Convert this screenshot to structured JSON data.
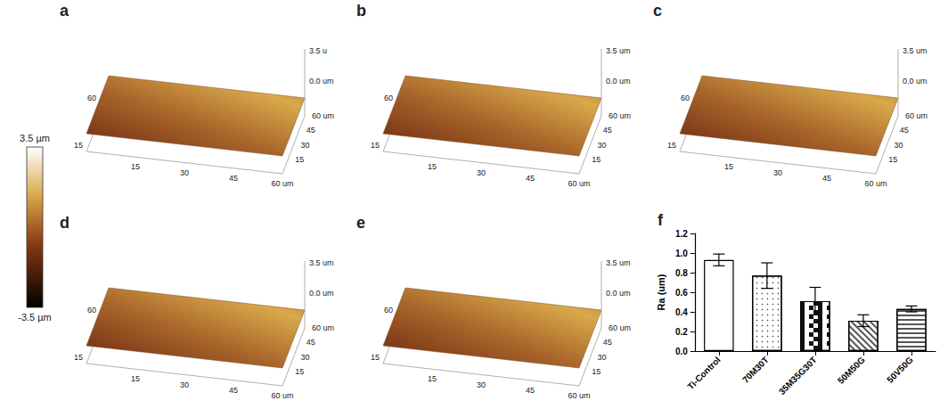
{
  "colorbar": {
    "ticks": [
      {
        "value": 3.5,
        "label": "3.5 µm"
      },
      {
        "value": -3.5,
        "label": "-3.5 µm"
      }
    ]
  },
  "afm_axis_labels": {
    "x": [
      "15",
      "30",
      "45",
      "60 um"
    ],
    "y": [
      "15",
      "30",
      "45",
      "60 um"
    ],
    "left": [
      "60",
      "15"
    ]
  },
  "afm_panels": [
    {
      "label": "a",
      "z_labels": [
        "3.5 u",
        "0.0 um"
      ]
    },
    {
      "label": "b",
      "z_labels": [
        "3.5 um",
        "0.0 um"
      ]
    },
    {
      "label": "c",
      "z_labels": [
        "3.5 um",
        "0.0 um"
      ]
    },
    {
      "label": "d",
      "z_labels": [
        "3.5 um",
        "0.0 um"
      ]
    },
    {
      "label": "e",
      "z_labels": [
        "3.5 um",
        "0.0 um"
      ]
    }
  ],
  "chart_data": {
    "panel": "f",
    "type": "bar",
    "categories": [
      "Ti-Control",
      "70M30T",
      "35M35G30T",
      "50M50G",
      "50V50G"
    ],
    "values": [
      0.93,
      0.77,
      0.51,
      0.31,
      0.43
    ],
    "errors": [
      0.06,
      0.13,
      0.14,
      0.06,
      0.03
    ],
    "y_label": "Ra (um)",
    "ylim": [
      0,
      1.2
    ],
    "yticks": [
      {
        "value": 0,
        "label": "0.0"
      },
      0.2,
      0.4,
      0.6,
      0.8,
      {
        "value": 1.0,
        "label": "1.0"
      },
      1.2
    ],
    "color": "#ffffff",
    "grid": false
  }
}
